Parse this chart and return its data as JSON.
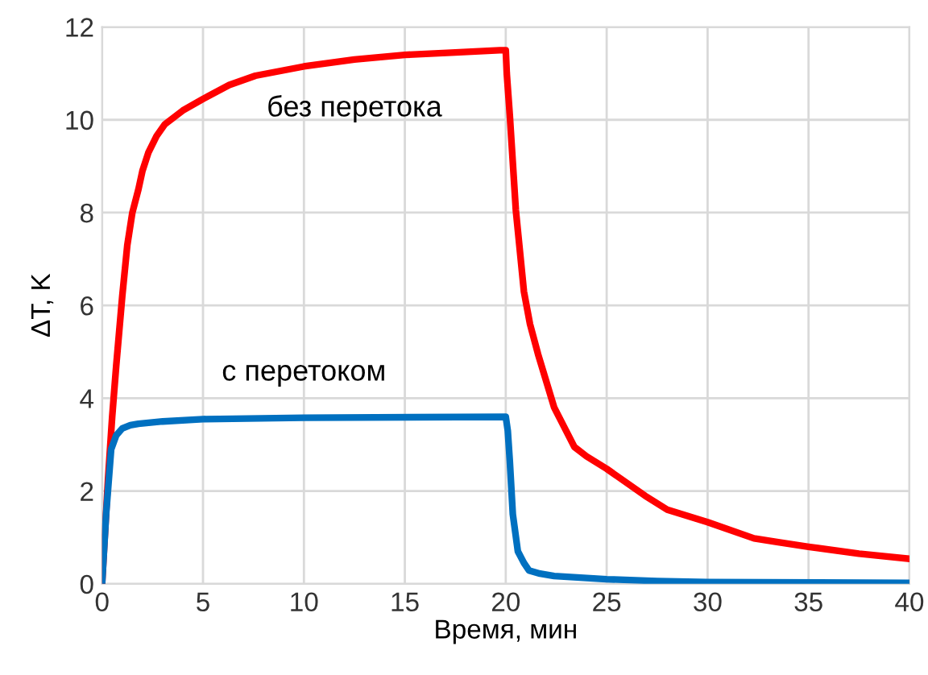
{
  "chart_data": {
    "type": "line",
    "xlabel": "Время, мин",
    "ylabel": "ΔT, K",
    "xlim": [
      0,
      40
    ],
    "xticks": [
      0,
      5,
      10,
      15,
      20,
      25,
      30,
      35,
      40
    ],
    "ylim": [
      0,
      12
    ],
    "yticks": [
      0,
      2,
      4,
      6,
      8,
      10,
      12
    ],
    "grid": true,
    "line_style": "solid",
    "marker": "none",
    "series": [
      {
        "name": "без перетока",
        "color": "#ff0000",
        "x": [
          0,
          0.3,
          0.5,
          0.7,
          1.0,
          1.25,
          1.5,
          1.8,
          2.0,
          2.3,
          2.7,
          3.1,
          4,
          5,
          6.3,
          7.6,
          10,
          12.5,
          15,
          17.5,
          19.7,
          20,
          20.05,
          20.2,
          20.5,
          20.9,
          21.2,
          21.6,
          22.4,
          23.4,
          24,
          25,
          26.9,
          28,
          30,
          32.3,
          33.5,
          35,
          37.5,
          40
        ],
        "values": [
          0,
          2.3,
          3.6,
          4.7,
          6.2,
          7.3,
          8.0,
          8.5,
          8.9,
          9.3,
          9.65,
          9.9,
          10.2,
          10.45,
          10.75,
          10.95,
          11.15,
          11.3,
          11.4,
          11.45,
          11.5,
          11.5,
          11.0,
          10.1,
          8.05,
          6.3,
          5.6,
          4.95,
          3.8,
          2.95,
          2.75,
          2.48,
          1.9,
          1.6,
          1.33,
          0.98,
          0.9,
          0.8,
          0.65,
          0.54
        ]
      },
      {
        "name": "с перетоком",
        "color": "#0070c0",
        "x": [
          0,
          0.2,
          0.45,
          0.7,
          1,
          1.4,
          1.8,
          3,
          5,
          10,
          20,
          20.1,
          20.2,
          20.35,
          20.6,
          20.9,
          21.15,
          21.7,
          22.4,
          25,
          27.5,
          30,
          40
        ],
        "values": [
          0,
          1.5,
          2.9,
          3.2,
          3.35,
          3.42,
          3.45,
          3.5,
          3.55,
          3.58,
          3.6,
          3.3,
          2.65,
          1.5,
          0.7,
          0.45,
          0.29,
          0.22,
          0.17,
          0.1,
          0.06,
          0.04,
          0.02
        ]
      }
    ]
  }
}
